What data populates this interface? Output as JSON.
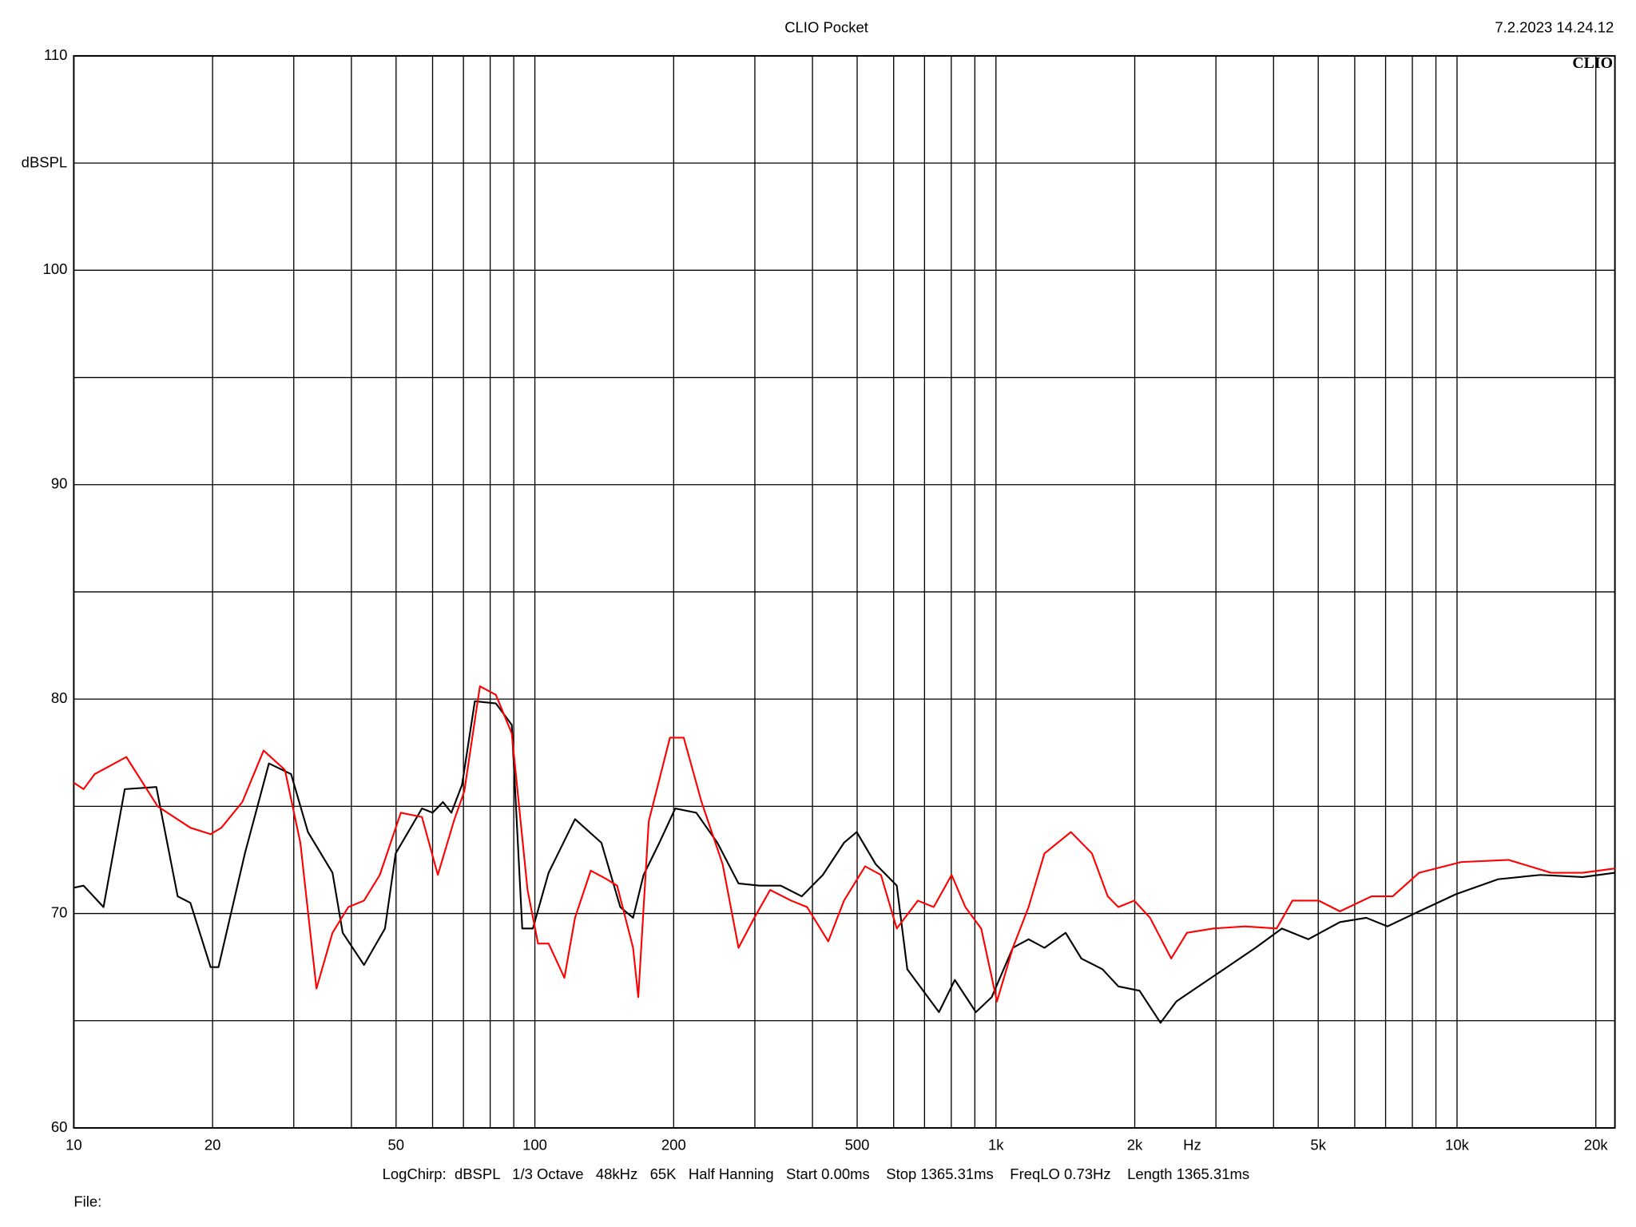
{
  "chart_data": {
    "type": "line",
    "title": "CLIO Pocket",
    "timestamp": "7.2.2023 14.24.12",
    "logo": "CLIO",
    "y_label": "dBSPL",
    "x_label": "Hz",
    "footer": "LogChirp:  dBSPL   1/3 Octave   48kHz   65K   Half Hanning   Start 0.00ms    Stop 1365.31ms    FreqLO 0.73Hz    Length 1365.31ms",
    "file_label": "File:",
    "xscale": "log",
    "grid": true,
    "xlim": [
      10,
      22000
    ],
    "ylim": [
      60,
      110
    ],
    "xticks": [
      10,
      20,
      50,
      100,
      200,
      500,
      {
        "value": 1000,
        "label": "1k"
      },
      {
        "value": 2000,
        "label": "2k"
      },
      {
        "value": 5000,
        "label": "5k"
      },
      {
        "value": 10000,
        "label": "10k"
      },
      {
        "value": 20000,
        "label": "20k"
      }
    ],
    "xgrid_minor": [
      30,
      40,
      60,
      70,
      80,
      90,
      300,
      400,
      600,
      700,
      800,
      900,
      3000,
      4000,
      6000,
      7000,
      8000,
      9000
    ],
    "yticks": [
      60,
      70,
      80,
      90,
      100,
      110
    ],
    "ygrid_minor": [
      65,
      75,
      85,
      95,
      105
    ],
    "series": [
      {
        "color": "#000000",
        "x": [
          10,
          10.5,
          11.6,
          12.9,
          15.1,
          16.8,
          17.9,
          19.8,
          20.6,
          23.5,
          26.5,
          29.6,
          32.2,
          36.4,
          38.3,
          42.6,
          47.3,
          49.9,
          56.9,
          60.0,
          63.2,
          65.9,
          69.5,
          74.1,
          82.3,
          89.1,
          93.9,
          99,
          107.1,
          122.2,
          139.4,
          153.2,
          163.3,
          172.1,
          186.2,
          201.6,
          223.9,
          248.8,
          276.5,
          307.2,
          341.4,
          379.1,
          421.3,
          468.2,
          498.9,
          548.5,
          609.4,
          642.3,
          695.1,
          752.3,
          814.3,
          904.7,
          979,
          1088,
          1177,
          1274,
          1416,
          1532,
          1702,
          1843,
          2048,
          2275,
          2462,
          2665,
          3121,
          3655,
          4170,
          4757,
          5572,
          6357,
          7063,
          8273,
          9947,
          12280,
          15164,
          18720,
          22000
        ],
        "values": [
          71.2,
          71.3,
          70.3,
          75.8,
          75.9,
          70.8,
          70.5,
          67.5,
          67.5,
          72.8,
          77.0,
          76.5,
          73.8,
          71.9,
          69.1,
          67.6,
          69.3,
          72.8,
          74.9,
          74.7,
          75.2,
          74.7,
          76.0,
          79.9,
          79.8,
          78.8,
          69.3,
          69.3,
          71.9,
          74.4,
          73.3,
          70.3,
          69.8,
          71.8,
          73.3,
          74.9,
          74.7,
          73.3,
          71.4,
          71.3,
          71.3,
          70.8,
          71.8,
          73.3,
          73.8,
          72.3,
          71.3,
          67.4,
          66.4,
          65.4,
          66.9,
          65.4,
          66.1,
          68.4,
          68.8,
          68.4,
          69.1,
          67.9,
          67.4,
          66.6,
          66.4,
          64.9,
          65.9,
          66.4,
          67.4,
          68.4,
          69.3,
          68.8,
          69.6,
          69.8,
          69.4,
          70.1,
          70.9,
          71.6,
          71.8,
          71.7,
          71.9
        ]
      },
      {
        "color": "#ff0000",
        "x": [
          10,
          10.5,
          11.1,
          13.0,
          15.2,
          17.9,
          19.8,
          20.9,
          23.2,
          25.8,
          28.7,
          31.0,
          33.6,
          36.4,
          39.4,
          42.6,
          46.1,
          51.2,
          56.9,
          61.6,
          66.7,
          70.3,
          76.0,
          82.3,
          89.1,
          96.4,
          101.6,
          107.1,
          115.9,
          122.2,
          132.2,
          143.1,
          150.8,
          163.3,
          167.6,
          176.6,
          196.3,
          210.3,
          229.9,
          255.4,
          276.5,
          299.2,
          323.8,
          359.7,
          389.3,
          432.8,
          468.2,
          520.3,
          563.1,
          609.4,
          677.1,
          732.8,
          801.5,
          858.3,
          929.0,
          1005,
          1088,
          1177,
          1274,
          1454,
          1615,
          1748,
          1843,
          1995,
          2159,
          2399,
          2596,
          2961,
          3467,
          4062,
          4395,
          5013,
          5572,
          6525,
          7251,
          8273,
          10212,
          12945,
          15988,
          18720,
          22000
        ],
        "values": [
          76.1,
          75.8,
          76.5,
          77.3,
          75.0,
          74.0,
          73.7,
          74.0,
          75.2,
          77.6,
          76.7,
          73.3,
          66.5,
          69.1,
          70.3,
          70.6,
          71.8,
          74.7,
          74.5,
          71.8,
          74.3,
          75.7,
          80.6,
          80.2,
          78.4,
          71.1,
          68.6,
          68.6,
          67.0,
          69.8,
          72.0,
          71.6,
          71.3,
          68.4,
          66.1,
          74.3,
          78.2,
          78.2,
          75.2,
          72.3,
          68.4,
          69.8,
          71.1,
          70.6,
          70.3,
          68.7,
          70.6,
          72.2,
          71.8,
          69.3,
          70.6,
          70.3,
          71.8,
          70.3,
          69.3,
          65.9,
          68.4,
          70.3,
          72.8,
          73.8,
          72.8,
          70.8,
          70.3,
          70.6,
          69.8,
          67.9,
          69.1,
          69.3,
          69.4,
          69.3,
          70.6,
          70.6,
          70.1,
          70.8,
          70.8,
          71.9,
          72.4,
          72.5,
          71.9,
          71.9,
          72.1
        ]
      }
    ]
  }
}
